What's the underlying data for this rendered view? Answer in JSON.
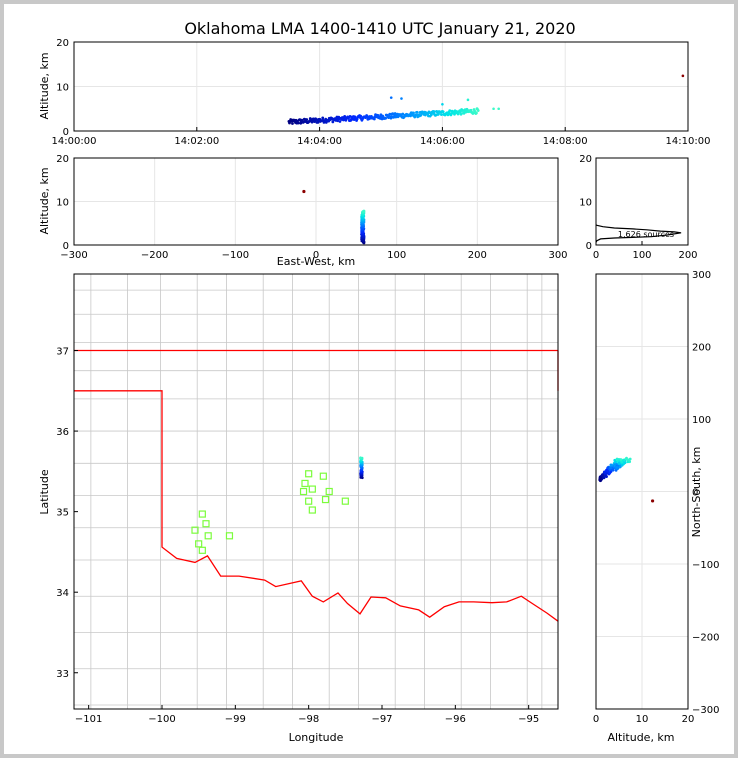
{
  "title": "Oklahoma LMA 1400-1410 UTC January 21, 2020",
  "colors": {
    "frame": "#c8c8c8",
    "grid": "#e6e6e6",
    "border_state": "#ff0000",
    "county": "#c8c8c8",
    "station": "#7cfc3c",
    "outlier": "#8b0000"
  },
  "chart_data": [
    {
      "id": "time-height",
      "type": "scatter",
      "ylabel": "Altitude, km",
      "x_ticks": [
        "14:00:00",
        "14:02:00",
        "14:04:00",
        "14:06:00",
        "14:08:00",
        "14:10:00"
      ],
      "x_range": [
        "14:00:00",
        "14:10:00"
      ],
      "y_range": [
        0,
        20
      ],
      "y_ticks": [
        "0",
        "10",
        "20"
      ],
      "grid": true,
      "main_cluster": {
        "time_start": "14:03:30",
        "time_end": "14:06:35",
        "alt_start_km": 2.0,
        "alt_end_km": 4.5
      },
      "notable_points": [
        {
          "time": "14:05:10",
          "alt_km": 7.5
        },
        {
          "time": "14:05:20",
          "alt_km": 7.3
        },
        {
          "time": "14:06:00",
          "alt_km": 6.0
        },
        {
          "time": "14:06:25",
          "alt_km": 7.0
        },
        {
          "time": "14:06:50",
          "alt_km": 5.0
        },
        {
          "time": "14:06:55",
          "alt_km": 5.0
        },
        {
          "time": "14:09:55",
          "alt_km": 12.4
        }
      ]
    },
    {
      "id": "ew-altitude",
      "type": "scatter",
      "xlabel": "East-West, km",
      "ylabel": "Altitude, km",
      "x_range": [
        -300,
        300
      ],
      "x_ticks": [
        "−300",
        "−200",
        "−100",
        "0",
        "100",
        "200",
        "300"
      ],
      "y_range": [
        0,
        20
      ],
      "y_ticks": [
        "0",
        "10",
        "20"
      ],
      "grid": true,
      "cluster": {
        "x_km": 58,
        "alt_min_km": 0.5,
        "alt_max_km": 7.8
      },
      "outlier": {
        "x_km": -15,
        "alt_km": 12.3
      }
    },
    {
      "id": "altitude-histogram",
      "type": "line",
      "x_range": [
        0,
        200
      ],
      "x_ticks": [
        "0",
        "100",
        "200"
      ],
      "y_range": [
        0,
        20
      ],
      "y_ticks": [
        "0",
        "10",
        "20"
      ],
      "annotation": "1,626 sources",
      "profile": [
        [
          0,
          0.6
        ],
        [
          2,
          1.0
        ],
        [
          10,
          1.4
        ],
        [
          40,
          1.6
        ],
        [
          120,
          1.9
        ],
        [
          155,
          2.3
        ],
        [
          185,
          2.8
        ],
        [
          170,
          3.0
        ],
        [
          140,
          3.2
        ],
        [
          110,
          3.5
        ],
        [
          80,
          3.7
        ],
        [
          40,
          3.9
        ],
        [
          15,
          4.2
        ],
        [
          3,
          4.5
        ],
        [
          0,
          4.6
        ]
      ]
    },
    {
      "id": "plan-view",
      "type": "scatter",
      "xlabel": "Longitude",
      "ylabel": "Latitude",
      "x_range": [
        -101.2,
        -94.6
      ],
      "x_ticks": [
        "−101",
        "−100",
        "−99",
        "−98",
        "−97",
        "−96",
        "−95"
      ],
      "y_range": [
        32.55,
        37.95
      ],
      "y_ticks": [
        "33",
        "34",
        "35",
        "36",
        "37"
      ],
      "cluster": {
        "lon": -97.28,
        "lat_min": 35.42,
        "lat_max": 35.67
      },
      "stations": [
        [
          -98.07,
          35.25
        ],
        [
          -98.05,
          35.35
        ],
        [
          -98.0,
          35.47
        ],
        [
          -97.95,
          35.28
        ],
        [
          -97.8,
          35.44
        ],
        [
          -97.72,
          35.25
        ],
        [
          -98.0,
          35.13
        ],
        [
          -97.95,
          35.02
        ],
        [
          -97.77,
          35.15
        ],
        [
          -97.5,
          35.13
        ],
        [
          -99.45,
          34.97
        ],
        [
          -99.4,
          34.85
        ],
        [
          -99.55,
          34.77
        ],
        [
          -99.37,
          34.7
        ],
        [
          -99.5,
          34.6
        ],
        [
          -99.45,
          34.52
        ],
        [
          -99.08,
          34.7
        ]
      ]
    },
    {
      "id": "altitude-ns",
      "type": "scatter",
      "xlabel": "Altitude, km",
      "ylabel": "North-South, km",
      "x_range": [
        0,
        20
      ],
      "x_ticks": [
        "0",
        "10",
        "20"
      ],
      "y_range": [
        -300,
        300
      ],
      "y_ticks": [
        "−300",
        "−200",
        "−100",
        "0",
        "100",
        "200",
        "300"
      ],
      "cluster": {
        "alt_min_km": 0.8,
        "alt_max_km": 7.8,
        "ns_min_km": 17,
        "ns_max_km": 45
      },
      "outlier": {
        "alt_km": 12.3,
        "ns_km": -13
      }
    }
  ]
}
